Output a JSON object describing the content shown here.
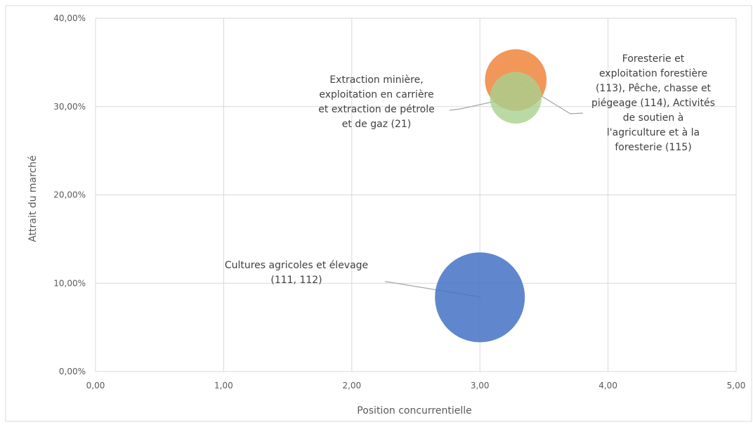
{
  "chart_data": {
    "type": "bubble",
    "xlabel": "Position concurrentielle",
    "ylabel": "Attrait du marché",
    "xlim": [
      0,
      5
    ],
    "ylim": [
      0,
      0.4
    ],
    "x_ticks": [
      "0,00",
      "1,00",
      "2,00",
      "3,00",
      "4,00",
      "5,00"
    ],
    "y_ticks": [
      "0,00%",
      "10,00%",
      "20,00%",
      "30,00%",
      "40,00%"
    ],
    "grid": true,
    "legend": "none",
    "series": [
      {
        "label": "Cultures agricoles et élevage (111, 112)",
        "label_lines": [
          "Cultures agricoles et élevage",
          "(111, 112)"
        ],
        "x": 3.0,
        "y": 0.084,
        "size": 1.0,
        "color": "#4472c4"
      },
      {
        "label": "Extraction minière, exploitation en carrière et extraction de pétrole et de gaz (21)",
        "label_lines": [
          "Extraction minière,",
          "exploitation en carrière",
          "et extraction de pétrole",
          "et de gaz (21)"
        ],
        "x": 3.28,
        "y": 0.33,
        "size": 0.47,
        "color": "#ed7d31"
      },
      {
        "label": "Foresterie et exploitation forestière (113), Pêche, chasse et piégeage (114), Activités de soutien à l'agriculture et à la foresterie (115)",
        "label_lines": [
          "Foresterie et",
          "exploitation forestière",
          "(113), Pêche, chasse et",
          "piégeage (114), Activités",
          "de soutien à",
          "l'agriculture et à la",
          "foresterie (115)"
        ],
        "x": 3.28,
        "y": 0.31,
        "size": 0.33,
        "color": "#a9d18e"
      }
    ]
  }
}
